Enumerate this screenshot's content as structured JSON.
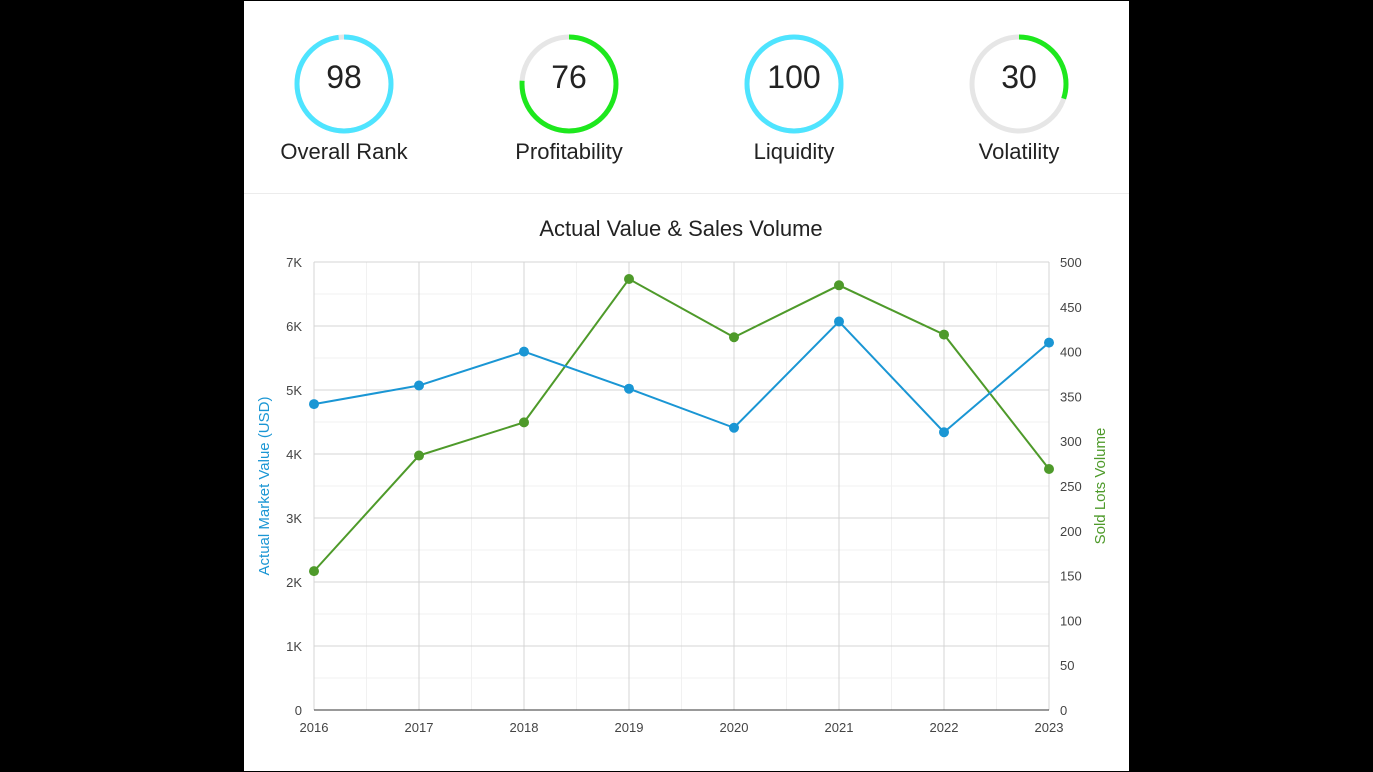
{
  "gauges": [
    {
      "value": 98,
      "label": "Overall Rank",
      "color": "#4ee4ff"
    },
    {
      "value": 76,
      "label": "Profitability",
      "color": "#1de81d"
    },
    {
      "value": 100,
      "label": "Liquidity",
      "color": "#4ee4ff"
    },
    {
      "value": 30,
      "label": "Volatility",
      "color": "#1de81d"
    }
  ],
  "chart_data": {
    "type": "line",
    "title": "Actual Value & Sales Volume",
    "categories": [
      "2016",
      "2017",
      "2018",
      "2019",
      "2020",
      "2021",
      "2022",
      "2023"
    ],
    "series": [
      {
        "name": "Actual Market Value (USD)",
        "axis": "left",
        "color": "#1a96d4",
        "values": [
          4780,
          5070,
          5600,
          5020,
          4410,
          6070,
          4340,
          5740
        ]
      },
      {
        "name": "Sold Lots Volume",
        "axis": "right",
        "color": "#4e9a2a",
        "values": [
          155,
          284,
          321,
          481,
          416,
          474,
          419,
          269
        ]
      }
    ],
    "y_left": {
      "label": "Actual Market Value (USD)",
      "min": 0,
      "max": 7000,
      "ticks": [
        "0",
        "1K",
        "2K",
        "3K",
        "4K",
        "5K",
        "6K",
        "7K"
      ]
    },
    "y_right": {
      "label": "Sold Lots Volume",
      "min": 0,
      "max": 500,
      "ticks": [
        "0",
        "50",
        "100",
        "150",
        "200",
        "250",
        "300",
        "350",
        "400",
        "450",
        "500"
      ]
    },
    "grid": true
  }
}
